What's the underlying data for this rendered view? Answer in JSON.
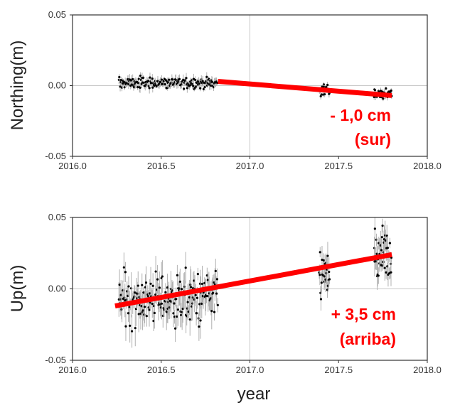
{
  "colors": {
    "trend": "#ff0000",
    "points": "#000000",
    "errorbar": "#b0b0b0",
    "grid": "#c8c8c8",
    "frame": "#333333"
  },
  "chart_data": [
    {
      "type": "scatter",
      "title": "",
      "xlabel": "",
      "ylabel": "Northing(m)",
      "xlim": [
        2016.0,
        2018.0
      ],
      "ylim": [
        -0.05,
        0.05
      ],
      "xticks": [
        "2016.0",
        "2016.5",
        "2017.0",
        "2017.5",
        "2018.0"
      ],
      "yticks": [
        "-0.05",
        "0.00",
        "0.05"
      ],
      "grid": "zero lines (x = 2017.0, y = 0.00)",
      "annotation": [
        "- 1,0 cm",
        "(sur)"
      ],
      "trend": {
        "x": [
          2016.82,
          2017.8
        ],
        "y": [
          0.003,
          -0.007
        ]
      },
      "clusters": [
        {
          "x_range": [
            2016.26,
            2016.82
          ],
          "mean": 0.002,
          "spread": 0.002,
          "count": 170,
          "errbar": 0.003
        },
        {
          "x_range": [
            2017.39,
            2017.45
          ],
          "mean": -0.003,
          "spread": 0.002,
          "count": 22,
          "errbar": 0.002
        },
        {
          "x_range": [
            2017.7,
            2017.8
          ],
          "mean": -0.006,
          "spread": 0.002,
          "count": 40,
          "errbar": 0.002
        }
      ]
    },
    {
      "type": "scatter",
      "title": "",
      "xlabel": "year",
      "ylabel": "Up(m)",
      "xlim": [
        2016.0,
        2018.0
      ],
      "ylim": [
        -0.05,
        0.05
      ],
      "xticks": [
        "2016.0",
        "2016.5",
        "2017.0",
        "2017.5",
        "2018.0"
      ],
      "yticks": [
        "-0.05",
        "0.00",
        "0.05"
      ],
      "grid": "zero lines (x = 2017.0, y = 0.00)",
      "annotation": [
        "+ 3,5 cm",
        "(arriba)"
      ],
      "trend": {
        "x": [
          2016.24,
          2017.8
        ],
        "y": [
          -0.012,
          0.024
        ]
      },
      "clusters": [
        {
          "x_range": [
            2016.26,
            2016.82
          ],
          "mean": -0.007,
          "spread": 0.009,
          "count": 180,
          "errbar": 0.01
        },
        {
          "x_range": [
            2017.39,
            2017.45
          ],
          "mean": 0.01,
          "spread": 0.009,
          "count": 24,
          "errbar": 0.008
        },
        {
          "x_range": [
            2017.7,
            2017.8
          ],
          "mean": 0.022,
          "spread": 0.01,
          "count": 42,
          "errbar": 0.009
        }
      ]
    }
  ]
}
